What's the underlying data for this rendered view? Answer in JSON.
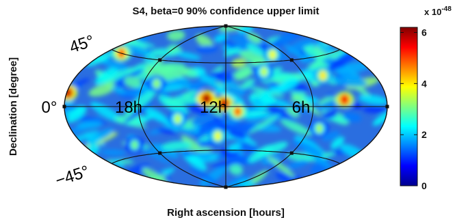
{
  "chart_data": {
    "type": "heatmap",
    "projection": "hammer-aitoff (all-sky)",
    "title": "S4, beta=0 90% confidence upper limit",
    "xlabel": "Right ascension [hours]",
    "ylabel": "Declination [degree]",
    "ra_tick_labels": [
      "18h",
      "12h",
      "6h"
    ],
    "dec_tick_labels": [
      "45°",
      "0°",
      "−45°"
    ],
    "colorbar": {
      "exponent_label": "x 10",
      "exponent_power": "-48",
      "ticks": [
        0,
        2,
        4,
        6
      ],
      "tick_labels": [
        "0",
        "2",
        "4",
        "6"
      ],
      "range": [
        0,
        6.2
      ],
      "colormap": "jet"
    },
    "hotspots": [
      {
        "ra_h": 13.3,
        "dec_deg": 8,
        "value": 6.0
      },
      {
        "ra_h": 12.1,
        "dec_deg": 3,
        "value": 5.8
      },
      {
        "ra_h": 3.6,
        "dec_deg": 6,
        "value": 5.5
      },
      {
        "ra_h": 22.4,
        "dec_deg": 45,
        "value": 5.0
      },
      {
        "ra_h": 23.9,
        "dec_deg": 10,
        "value": 5.8
      },
      {
        "ra_h": 11.2,
        "dec_deg": -5,
        "value": 4.8
      },
      {
        "ra_h": 7.3,
        "dec_deg": 52,
        "value": 3.8
      },
      {
        "ra_h": 4.5,
        "dec_deg": 28,
        "value": 4.0
      },
      {
        "ra_h": 12.6,
        "dec_deg": -30,
        "value": 3.8
      },
      {
        "ra_h": 9.0,
        "dec_deg": 35,
        "value": 3.5
      },
      {
        "ra_h": 15.3,
        "dec_deg": -12,
        "value": 3.5
      },
      {
        "ra_h": 5.2,
        "dec_deg": -20,
        "value": 3.3
      },
      {
        "ra_h": 17.0,
        "dec_deg": 22,
        "value": 3.2
      },
      {
        "ra_h": 19.5,
        "dec_deg": -35,
        "value": 3.0
      }
    ],
    "background_range": [
      1,
      3
    ],
    "grid": true
  }
}
